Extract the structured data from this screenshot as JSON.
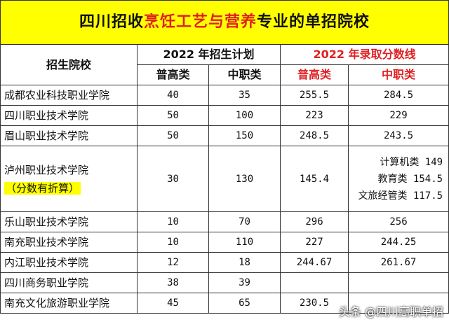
{
  "title": {
    "prefix": "四川招收",
    "highlight": "烹饪工艺与营养",
    "suffix": "专业的单招院校"
  },
  "headers": {
    "school": "招生院校",
    "plan_group": "2022 年招生计划",
    "score_group": "2022 年录取分数线",
    "plan_general": "普高类",
    "plan_vocational": "中职类",
    "score_general": "普高类",
    "score_vocational": "中职类"
  },
  "rows": [
    {
      "school": "成都农业科技职业学院",
      "plan_general": "40",
      "plan_vocational": "35",
      "score_general": "255.5",
      "score_vocational": "284.5"
    },
    {
      "school": "四川职业技术学院",
      "plan_general": "50",
      "plan_vocational": "100",
      "score_general": "223",
      "score_vocational": "229"
    },
    {
      "school": "眉山职业技术学院",
      "plan_general": "50",
      "plan_vocational": "150",
      "score_general": "248.5",
      "score_vocational": "243.5"
    },
    {
      "school": "泸州职业技术学院",
      "note": "（分数有折算）",
      "plan_general": "30",
      "plan_vocational": "130",
      "score_general": "145.4",
      "score_vocational_lines": [
        "计算机类 149",
        "教育类 154.5",
        "文旅经管类 117.5"
      ]
    },
    {
      "school": "乐山职业技术学院",
      "plan_general": "10",
      "plan_vocational": "70",
      "score_general": "296",
      "score_vocational": "256"
    },
    {
      "school": "南充职业技术学院",
      "plan_general": "10",
      "plan_vocational": "110",
      "score_general": "227",
      "score_vocational": "244.25"
    },
    {
      "school": "内江职业技术学院",
      "plan_general": "12",
      "plan_vocational": "18",
      "score_general": "244.67",
      "score_vocational": "261.67"
    },
    {
      "school": "四川商务职业学院",
      "plan_general": "38",
      "plan_vocational": "39",
      "score_general": "",
      "score_vocational": ""
    },
    {
      "school": "南充文化旅游职业学院",
      "plan_general": "45",
      "plan_vocational": "65",
      "score_general": "230.5",
      "score_vocational": ""
    }
  ],
  "watermark": {
    "text": "头条 @四川高职单招"
  },
  "colors": {
    "title_bg": "#ffff00",
    "highlight_red": "#e02020",
    "note_bg": "#ffff00"
  }
}
